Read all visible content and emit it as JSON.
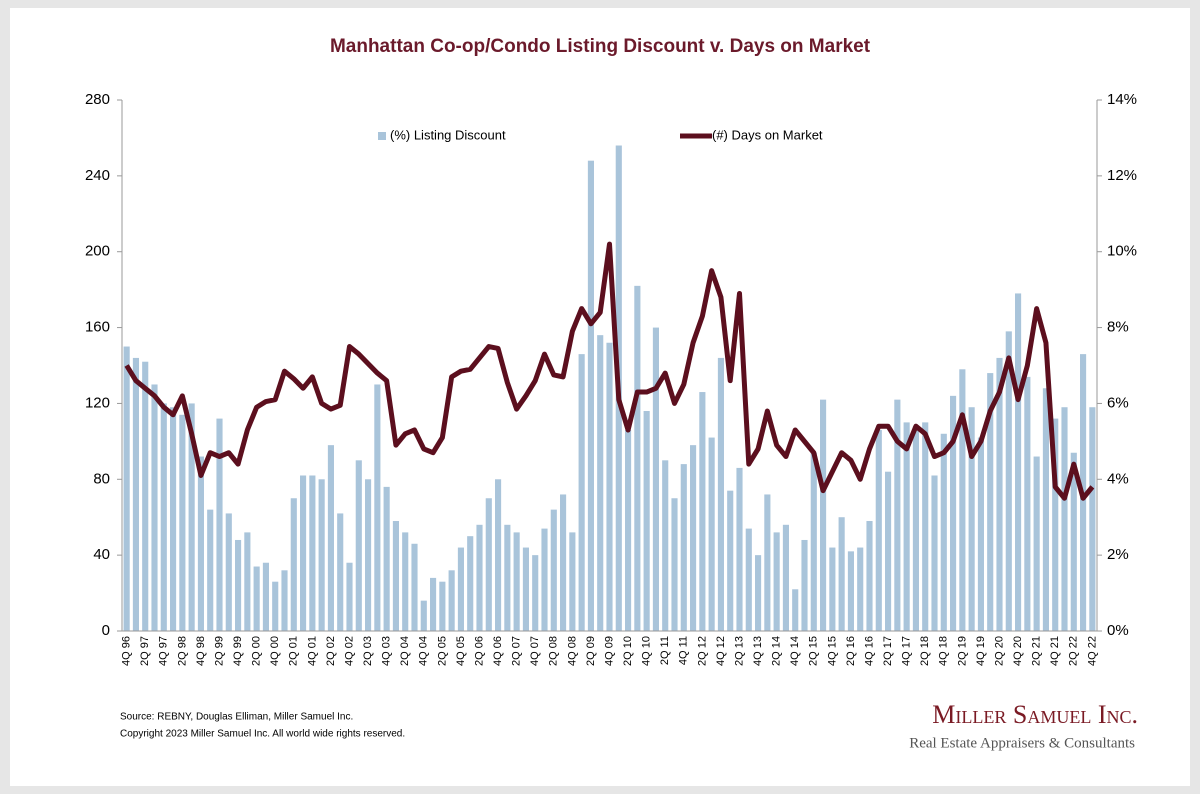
{
  "chart_data": {
    "type": "bar-line",
    "title": "Manhattan Co-op/Condo Listing Discount v. Days on Market",
    "categories": [
      "4Q 96",
      null,
      "2Q 97",
      null,
      "4Q 97",
      null,
      "2Q 98",
      null,
      "4Q 98",
      null,
      "2Q 99",
      null,
      "4Q 99",
      null,
      "2Q 00",
      null,
      "4Q 00",
      null,
      "2Q 01",
      null,
      "4Q 01",
      null,
      "2Q 02",
      null,
      "4Q 02",
      null,
      "2Q 03",
      null,
      "4Q 03",
      null,
      "2Q 04",
      null,
      "4Q 04",
      null,
      "2Q 05",
      null,
      "4Q 05",
      null,
      "2Q 06",
      null,
      "4Q 06",
      null,
      "2Q 07",
      null,
      "4Q 07",
      null,
      "2Q 08",
      null,
      "4Q 08",
      null,
      "2Q 09",
      null,
      "4Q 09",
      null,
      "2Q 10",
      null,
      "4Q 10",
      null,
      "2Q 11",
      null,
      "4Q 11",
      null,
      "2Q 12",
      null,
      "4Q 12",
      null,
      "2Q 13",
      null,
      "4Q 13",
      null,
      "2Q 14",
      null,
      "4Q 14",
      null,
      "2Q 15",
      null,
      "4Q 15",
      null,
      "2Q 16",
      null,
      "4Q 16",
      null,
      "2Q 17",
      null,
      "4Q 17",
      null,
      "2Q 18",
      null,
      "4Q 18",
      null,
      "2Q 19",
      null,
      "4Q 19",
      null,
      "2Q 20",
      null,
      "4Q 20",
      null,
      "2Q 21",
      null,
      "4Q 21",
      null,
      "2Q 22",
      null,
      "4Q 22"
    ],
    "series": [
      {
        "name": "(%) Listing Discount",
        "color": "#a9c4da",
        "axis": "y2",
        "kind": "bar",
        "values": [
          7.5,
          7.2,
          7.1,
          6.5,
          6.0,
          5.9,
          5.7,
          6.0,
          4.6,
          3.2,
          5.6,
          3.1,
          2.4,
          2.6,
          1.7,
          1.8,
          1.3,
          1.6,
          3.5,
          4.1,
          4.1,
          4.0,
          4.9,
          3.1,
          1.8,
          4.5,
          4.0,
          6.5,
          3.8,
          2.9,
          2.6,
          2.3,
          0.8,
          1.4,
          1.3,
          1.6,
          2.2,
          2.5,
          2.8,
          3.5,
          4.0,
          2.8,
          2.6,
          2.2,
          2.0,
          2.7,
          3.2,
          3.6,
          2.6,
          7.3,
          12.4,
          7.8,
          7.6,
          12.8,
          5.3,
          9.1,
          5.8,
          8.0,
          4.5,
          3.5,
          4.4,
          4.9,
          6.3,
          5.1,
          7.2,
          3.7,
          4.3,
          2.7,
          2.0,
          3.6,
          2.6,
          2.8,
          1.1,
          2.4,
          4.7,
          6.1,
          2.2,
          3.0,
          2.1,
          2.2,
          2.9,
          5.3,
          4.2,
          6.1,
          5.5,
          5.4,
          5.5,
          4.1,
          5.2,
          6.2,
          6.9,
          5.9,
          5.1,
          6.8,
          7.2,
          7.9,
          8.9,
          6.7,
          4.6,
          6.4,
          5.6,
          5.9,
          4.7,
          7.3,
          5.9
        ]
      },
      {
        "name": "(#) Days on Market",
        "color": "#5c0f1e",
        "axis": "y",
        "kind": "line",
        "values": [
          140,
          132,
          128,
          124,
          118,
          114,
          124,
          104,
          82,
          94,
          92,
          94,
          88,
          106,
          118,
          121,
          122,
          137,
          133,
          128,
          134,
          120,
          117,
          119,
          150,
          146,
          141,
          136,
          132,
          98,
          104,
          106,
          96,
          94,
          102,
          134,
          137,
          138,
          144,
          150,
          149,
          131,
          117,
          124,
          132,
          146,
          135,
          134,
          158,
          170,
          162,
          168,
          204,
          122,
          106,
          126,
          126,
          128,
          136,
          120,
          130,
          152,
          166,
          190,
          176,
          132,
          178,
          88,
          96,
          116,
          98,
          92,
          106,
          100,
          94,
          74,
          84,
          94,
          90,
          80,
          96,
          108,
          108,
          100,
          96,
          108,
          104,
          92,
          94,
          100,
          114,
          92,
          100,
          116,
          126,
          144,
          122,
          140,
          170,
          152,
          76,
          70,
          88,
          70,
          76
        ]
      }
    ],
    "ylim": [
      0,
      280
    ],
    "yticks": [
      0,
      40,
      80,
      120,
      160,
      200,
      240,
      280
    ],
    "y2lim": [
      0,
      14
    ],
    "y2ticks": [
      {
        "value": 0,
        "label": "0%"
      },
      {
        "value": 2,
        "label": "2%"
      },
      {
        "value": 4,
        "label": "4%"
      },
      {
        "value": 6,
        "label": "6%"
      },
      {
        "value": 8,
        "label": "8%"
      },
      {
        "value": 10,
        "label": "10%"
      },
      {
        "value": 12,
        "label": "12%"
      },
      {
        "value": 14,
        "label": "14%"
      }
    ],
    "grid": false,
    "legend": "top"
  },
  "footer": {
    "source": "Source: REBNY, Douglas Elliman, Miller Samuel Inc.",
    "copyright": "Copyright 2023 Miller Samuel Inc.  All world wide rights reserved."
  },
  "logo": {
    "name": "Miller Samuel Inc.",
    "tagline": "Real Estate Appraisers & Consultants"
  }
}
